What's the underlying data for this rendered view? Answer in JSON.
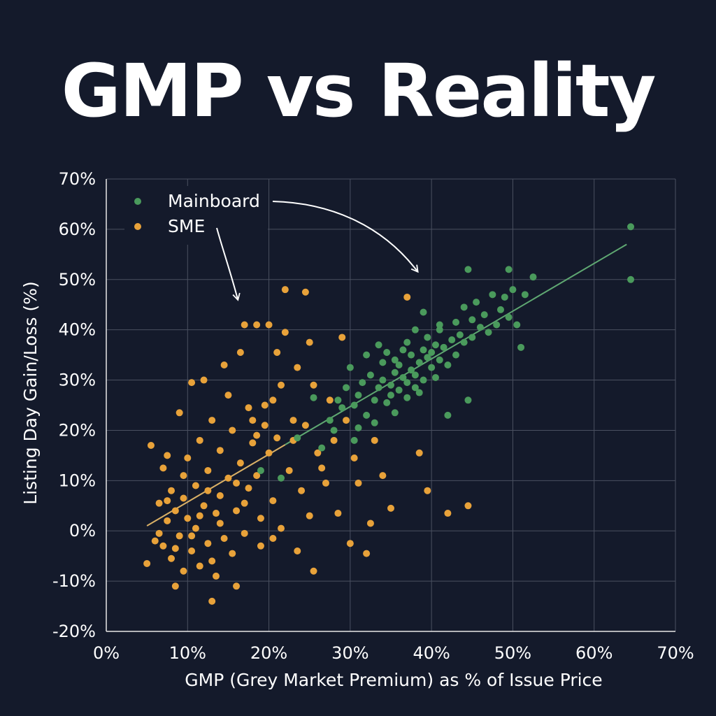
{
  "title": "GMP vs Reality",
  "chart_data": {
    "type": "scatter",
    "title": "GMP vs Reality",
    "xlabel": "GMP (Grey Market Premium) as % of Issue Price",
    "ylabel": "Listing Day Gain/Loss (%)",
    "xlim": [
      0,
      70
    ],
    "ylim": [
      -20,
      70
    ],
    "xticks": [
      "0%",
      "10%",
      "20%",
      "30%",
      "40%",
      "50%",
      "60%",
      "70%"
    ],
    "yticks": [
      "-20%",
      "-10%",
      "0%",
      "10%",
      "20%",
      "30%",
      "40%",
      "50%",
      "60%",
      "70%"
    ],
    "grid": true,
    "legend_position": "top-left",
    "trendline": {
      "x": [
        5,
        64
      ],
      "y": [
        1,
        57
      ]
    },
    "series": [
      {
        "name": "Mainboard",
        "color": "#4a9a5c",
        "points": [
          [
            19.0,
            12.0
          ],
          [
            21.5,
            10.5
          ],
          [
            23.5,
            18.5
          ],
          [
            25.5,
            26.5
          ],
          [
            26.5,
            16.5
          ],
          [
            27.5,
            22.0
          ],
          [
            28.0,
            20.0
          ],
          [
            29.0,
            24.5
          ],
          [
            29.5,
            28.5
          ],
          [
            30.5,
            25.0
          ],
          [
            31.0,
            27.0
          ],
          [
            31.5,
            29.5
          ],
          [
            32.0,
            23.0
          ],
          [
            32.5,
            31.0
          ],
          [
            33.0,
            26.0
          ],
          [
            33.0,
            21.5
          ],
          [
            33.5,
            28.5
          ],
          [
            34.0,
            33.5
          ],
          [
            34.0,
            30.0
          ],
          [
            34.5,
            25.5
          ],
          [
            35.0,
            29.0
          ],
          [
            35.0,
            27.0
          ],
          [
            35.5,
            31.5
          ],
          [
            35.5,
            23.5
          ],
          [
            36.0,
            28.0
          ],
          [
            36.0,
            33.0
          ],
          [
            36.5,
            30.5
          ],
          [
            37.0,
            26.5
          ],
          [
            37.0,
            29.5
          ],
          [
            37.5,
            32.0
          ],
          [
            37.5,
            35.0
          ],
          [
            38.0,
            28.5
          ],
          [
            38.0,
            31.0
          ],
          [
            38.5,
            33.5
          ],
          [
            38.5,
            27.5
          ],
          [
            39.0,
            36.0
          ],
          [
            39.0,
            30.0
          ],
          [
            39.5,
            34.5
          ],
          [
            39.5,
            38.5
          ],
          [
            40.0,
            32.5
          ],
          [
            40.0,
            35.5
          ],
          [
            40.5,
            37.0
          ],
          [
            40.5,
            30.5
          ],
          [
            41.0,
            34.0
          ],
          [
            41.0,
            40.0
          ],
          [
            41.5,
            36.5
          ],
          [
            42.0,
            33.0
          ],
          [
            42.0,
            23.0
          ],
          [
            42.5,
            38.0
          ],
          [
            43.0,
            41.5
          ],
          [
            43.0,
            35.0
          ],
          [
            43.5,
            39.0
          ],
          [
            44.0,
            44.5
          ],
          [
            44.0,
            37.5
          ],
          [
            44.5,
            26.0
          ],
          [
            45.0,
            42.0
          ],
          [
            45.0,
            38.5
          ],
          [
            45.5,
            45.5
          ],
          [
            46.0,
            40.5
          ],
          [
            46.5,
            43.0
          ],
          [
            47.0,
            39.5
          ],
          [
            47.5,
            47.0
          ],
          [
            48.0,
            41.0
          ],
          [
            48.5,
            44.0
          ],
          [
            49.0,
            46.5
          ],
          [
            49.5,
            42.5
          ],
          [
            50.0,
            48.0
          ],
          [
            50.5,
            41.0
          ],
          [
            51.0,
            36.5
          ],
          [
            51.5,
            47.0
          ],
          [
            52.5,
            50.5
          ],
          [
            44.5,
            52.0
          ],
          [
            49.5,
            52.0
          ],
          [
            64.5,
            60.5
          ],
          [
            64.5,
            50.0
          ],
          [
            36.5,
            36.0
          ],
          [
            34.5,
            35.5
          ],
          [
            32.0,
            35.0
          ],
          [
            33.5,
            37.0
          ],
          [
            37.0,
            37.5
          ],
          [
            30.0,
            32.5
          ],
          [
            31.0,
            20.5
          ],
          [
            28.5,
            26.0
          ],
          [
            30.5,
            18.0
          ],
          [
            39.0,
            43.5
          ],
          [
            41.0,
            41.0
          ],
          [
            38.0,
            40.0
          ],
          [
            35.5,
            34.0
          ]
        ]
      },
      {
        "name": "SME",
        "color": "#e8a23a",
        "points": [
          [
            5.0,
            -6.5
          ],
          [
            5.5,
            17.0
          ],
          [
            6.0,
            -2.0
          ],
          [
            6.5,
            5.5
          ],
          [
            7.0,
            -3.0
          ],
          [
            7.0,
            12.5
          ],
          [
            7.5,
            2.0
          ],
          [
            7.5,
            15.0
          ],
          [
            8.0,
            -5.5
          ],
          [
            8.0,
            8.0
          ],
          [
            8.5,
            -11.0
          ],
          [
            8.5,
            4.0
          ],
          [
            9.0,
            -1.0
          ],
          [
            9.0,
            23.5
          ],
          [
            9.5,
            6.5
          ],
          [
            9.5,
            -8.0
          ],
          [
            10.0,
            2.5
          ],
          [
            10.0,
            14.5
          ],
          [
            10.5,
            29.5
          ],
          [
            10.5,
            -4.0
          ],
          [
            11.0,
            9.0
          ],
          [
            11.0,
            0.5
          ],
          [
            11.5,
            18.0
          ],
          [
            11.5,
            -7.0
          ],
          [
            12.0,
            5.0
          ],
          [
            12.0,
            30.0
          ],
          [
            12.5,
            -2.5
          ],
          [
            12.5,
            12.0
          ],
          [
            13.0,
            -14.0
          ],
          [
            13.0,
            22.0
          ],
          [
            13.5,
            3.5
          ],
          [
            13.5,
            -9.0
          ],
          [
            14.0,
            16.0
          ],
          [
            14.0,
            7.0
          ],
          [
            14.5,
            33.0
          ],
          [
            14.5,
            -1.5
          ],
          [
            15.0,
            27.0
          ],
          [
            15.0,
            10.5
          ],
          [
            15.5,
            -4.5
          ],
          [
            15.5,
            20.0
          ],
          [
            16.0,
            4.0
          ],
          [
            16.0,
            -11.0
          ],
          [
            16.5,
            35.5
          ],
          [
            16.5,
            13.5
          ],
          [
            17.0,
            41.0
          ],
          [
            17.0,
            -0.5
          ],
          [
            17.5,
            24.5
          ],
          [
            17.5,
            8.5
          ],
          [
            18.0,
            22.0
          ],
          [
            18.0,
            17.5
          ],
          [
            18.5,
            41.0
          ],
          [
            18.5,
            11.0
          ],
          [
            19.0,
            2.5
          ],
          [
            19.0,
            -3.0
          ],
          [
            19.5,
            25.0
          ],
          [
            20.0,
            41.0
          ],
          [
            20.0,
            15.5
          ],
          [
            20.5,
            6.0
          ],
          [
            20.5,
            -1.5
          ],
          [
            21.0,
            18.5
          ],
          [
            21.5,
            29.0
          ],
          [
            21.5,
            0.5
          ],
          [
            22.0,
            48.0
          ],
          [
            22.0,
            39.5
          ],
          [
            22.5,
            12.0
          ],
          [
            23.0,
            18.0
          ],
          [
            23.5,
            -4.0
          ],
          [
            23.5,
            32.5
          ],
          [
            24.0,
            8.0
          ],
          [
            24.5,
            47.5
          ],
          [
            24.5,
            21.0
          ],
          [
            25.0,
            37.5
          ],
          [
            25.0,
            3.0
          ],
          [
            25.5,
            -8.0
          ],
          [
            26.0,
            15.5
          ],
          [
            27.0,
            9.5
          ],
          [
            27.5,
            26.0
          ],
          [
            28.0,
            18.0
          ],
          [
            28.5,
            3.5
          ],
          [
            29.0,
            38.5
          ],
          [
            29.5,
            22.0
          ],
          [
            30.0,
            -2.5
          ],
          [
            30.5,
            14.5
          ],
          [
            31.0,
            9.5
          ],
          [
            32.0,
            -4.5
          ],
          [
            32.5,
            1.5
          ],
          [
            33.0,
            18.0
          ],
          [
            34.0,
            11.0
          ],
          [
            35.0,
            4.5
          ],
          [
            37.0,
            46.5
          ],
          [
            38.5,
            15.5
          ],
          [
            39.5,
            8.0
          ],
          [
            42.0,
            3.5
          ],
          [
            44.5,
            5.0
          ],
          [
            20.5,
            26.0
          ],
          [
            19.5,
            21.0
          ],
          [
            18.5,
            19.0
          ],
          [
            21.0,
            35.5
          ],
          [
            23.0,
            22.0
          ],
          [
            25.5,
            29.0
          ],
          [
            26.5,
            12.5
          ],
          [
            17.0,
            5.5
          ],
          [
            16.0,
            9.5
          ],
          [
            14.0,
            1.5
          ],
          [
            13.0,
            -6.0
          ],
          [
            11.5,
            3.0
          ],
          [
            10.5,
            -1.0
          ],
          [
            9.5,
            11.0
          ],
          [
            8.5,
            -3.5
          ],
          [
            7.5,
            6.0
          ],
          [
            6.5,
            -0.5
          ],
          [
            12.5,
            8.0
          ]
        ]
      }
    ]
  },
  "legend": {
    "items": [
      {
        "label": "Mainboard",
        "color": "#4a9a5c"
      },
      {
        "label": "SME",
        "color": "#e8a23a"
      }
    ]
  }
}
